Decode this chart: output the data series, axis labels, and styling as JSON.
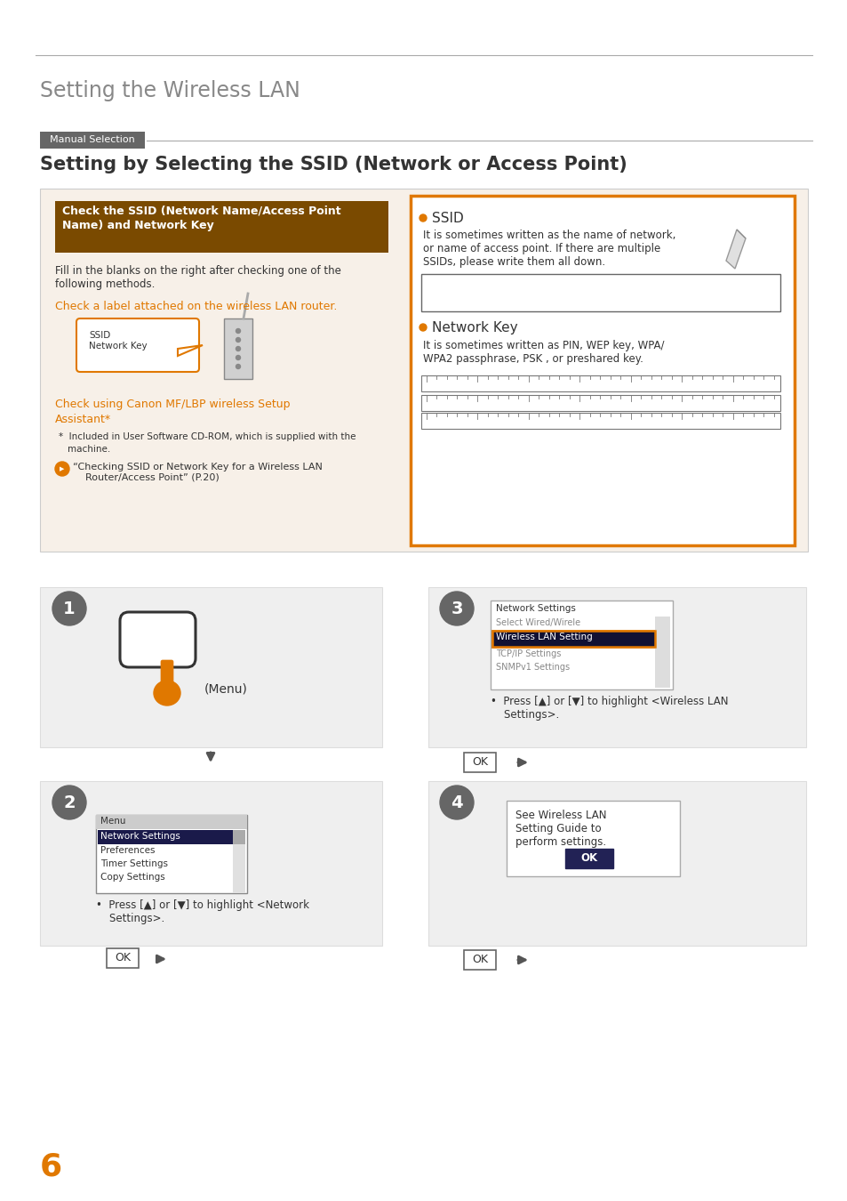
{
  "page_title": "Setting the Wireless LAN",
  "section_label": "Manual Selection",
  "section_title": "Setting by Selecting the SSID (Network or Access Point)",
  "header_box_bg": "#7a4a00",
  "header_box_text_color": "#ffffff",
  "right_box_border": "#e07800",
  "orange_color": "#e07800",
  "dark_brown": "#7a4a00",
  "gray_text": "#555555",
  "dark_gray": "#333333",
  "step_circle_color": "#666666",
  "page_number": "6",
  "background": "#ffffff"
}
